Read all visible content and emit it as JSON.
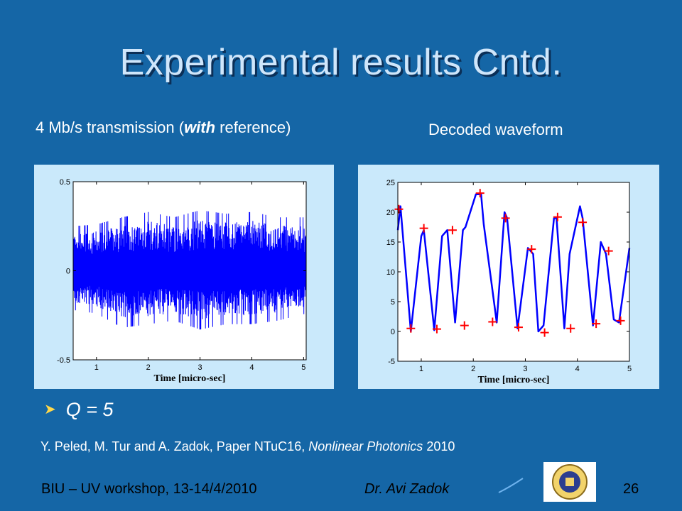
{
  "slide": {
    "title": "Experimental results Cntd.",
    "caption_left": {
      "prefix": "4 Mb/s transmission (",
      "emphasis": "with",
      "suffix": " reference)"
    },
    "caption_right": "Decoded waveform",
    "bullet": "Q = 5",
    "reference": {
      "prefix": "Y. Peled, M. Tur and A. Zadok, Paper NTuC16, ",
      "emphasis": "Nonlinear Photonics",
      "suffix": " 2010"
    },
    "footer_left": "BIU – UV workshop, 13-14/4/2010",
    "footer_center": "Dr. Avi Zadok",
    "page_number": "26",
    "logo_icon": "bar-ilan-university-logo-icon"
  },
  "colors": {
    "background": "#1566a6",
    "title": "#cfe6fb",
    "panel": "#cae9fb",
    "trace": "#0000ff",
    "marker": "#ff0000",
    "bullet_arrow": "#ffd84a"
  },
  "chart_data": [
    {
      "type": "line",
      "title": "",
      "xlabel": "Time [micro-sec]",
      "ylabel": "",
      "xlim": [
        0.55,
        5.05
      ],
      "ylim": [
        -0.5,
        0.5
      ],
      "xticks": [
        1,
        2,
        3,
        4,
        5
      ],
      "yticks": [
        -0.5,
        0,
        0.5
      ],
      "ytick_labels": [
        "-0.5",
        "0",
        "0.5"
      ],
      "grid": false,
      "series": [
        {
          "style": "dense noise-like waveform",
          "envelope_x": [
            0.55,
            1.0,
            1.5,
            2.0,
            2.5,
            3.0,
            3.5,
            4.0,
            4.5,
            5.05
          ],
          "envelope_upper": [
            0.25,
            0.26,
            0.3,
            0.33,
            0.3,
            0.34,
            0.32,
            0.33,
            0.3,
            0.3
          ],
          "envelope_lower": [
            -0.22,
            -0.24,
            -0.32,
            -0.3,
            -0.28,
            -0.33,
            -0.3,
            -0.3,
            -0.28,
            -0.24
          ]
        }
      ]
    },
    {
      "type": "line",
      "title": "",
      "xlabel": "Time [micro-sec]",
      "ylabel": "",
      "xlim": [
        0.55,
        5.0
      ],
      "ylim": [
        -5,
        25
      ],
      "xticks": [
        1,
        2,
        3,
        4,
        5
      ],
      "yticks": [
        -5,
        0,
        5,
        10,
        15,
        20,
        25
      ],
      "ytick_labels": [
        "-5",
        "0",
        "5",
        "10",
        "15",
        "20",
        "25"
      ],
      "grid": false,
      "series": [
        {
          "style": "waveform",
          "x": [
            0.55,
            0.6,
            0.8,
            1.0,
            1.05,
            1.25,
            1.4,
            1.5,
            1.65,
            1.8,
            1.85,
            2.05,
            2.15,
            2.2,
            2.45,
            2.6,
            2.65,
            2.85,
            3.05,
            3.15,
            3.25,
            3.35,
            3.55,
            3.6,
            3.75,
            3.85,
            4.05,
            4.1,
            4.3,
            4.45,
            4.55,
            4.7,
            4.8,
            5.0
          ],
          "y": [
            17,
            21,
            0,
            16,
            17,
            0.2,
            16,
            17,
            1.5,
            17,
            17.5,
            23,
            23,
            18,
            1.5,
            20,
            19,
            0.5,
            14,
            13,
            0,
            1,
            19,
            19,
            0.5,
            13,
            21,
            19,
            1,
            15,
            13,
            2,
            1.5,
            14
          ]
        },
        {
          "style": "markers",
          "x": [
            0.57,
            0.8,
            1.05,
            1.3,
            1.6,
            1.83,
            2.13,
            2.37,
            2.62,
            2.87,
            3.12,
            3.37,
            3.62,
            3.87,
            4.1,
            4.36,
            4.6,
            4.83
          ],
          "y": [
            20.5,
            0.5,
            17.3,
            0.4,
            17,
            1,
            23.2,
            1.6,
            19,
            0.7,
            13.8,
            -0.2,
            19.2,
            0.5,
            18.3,
            1.3,
            13.5,
            1.8
          ]
        }
      ]
    }
  ]
}
